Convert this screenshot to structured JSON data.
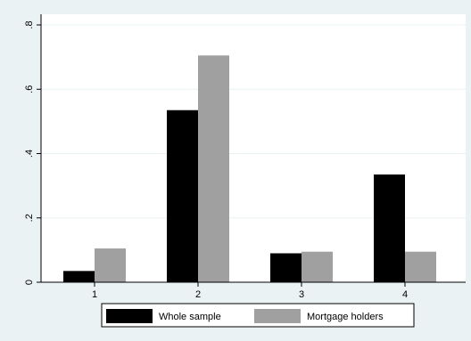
{
  "chart_data": {
    "type": "bar",
    "categories": [
      "1",
      "2",
      "3",
      "4"
    ],
    "series": [
      {
        "name": "Whole sample",
        "values": [
          0.035,
          0.535,
          0.09,
          0.335
        ],
        "color": "#000000"
      },
      {
        "name": "Mortgage holders",
        "values": [
          0.105,
          0.705,
          0.095,
          0.095
        ],
        "color": "#a0a0a0"
      }
    ],
    "ylim": [
      0,
      0.8
    ],
    "yticks": [
      {
        "value": 0,
        "label": "0"
      },
      {
        "value": 0.2,
        "label": ".2"
      },
      {
        "value": 0.4,
        "label": ".4"
      },
      {
        "value": 0.6,
        "label": ".6"
      },
      {
        "value": 0.8,
        "label": ".8"
      }
    ],
    "grid": true,
    "legend": "bottom",
    "colors": {
      "background": "#eaf2f3",
      "plot_background": "#ffffff",
      "grid": "#eaf2f3"
    }
  }
}
